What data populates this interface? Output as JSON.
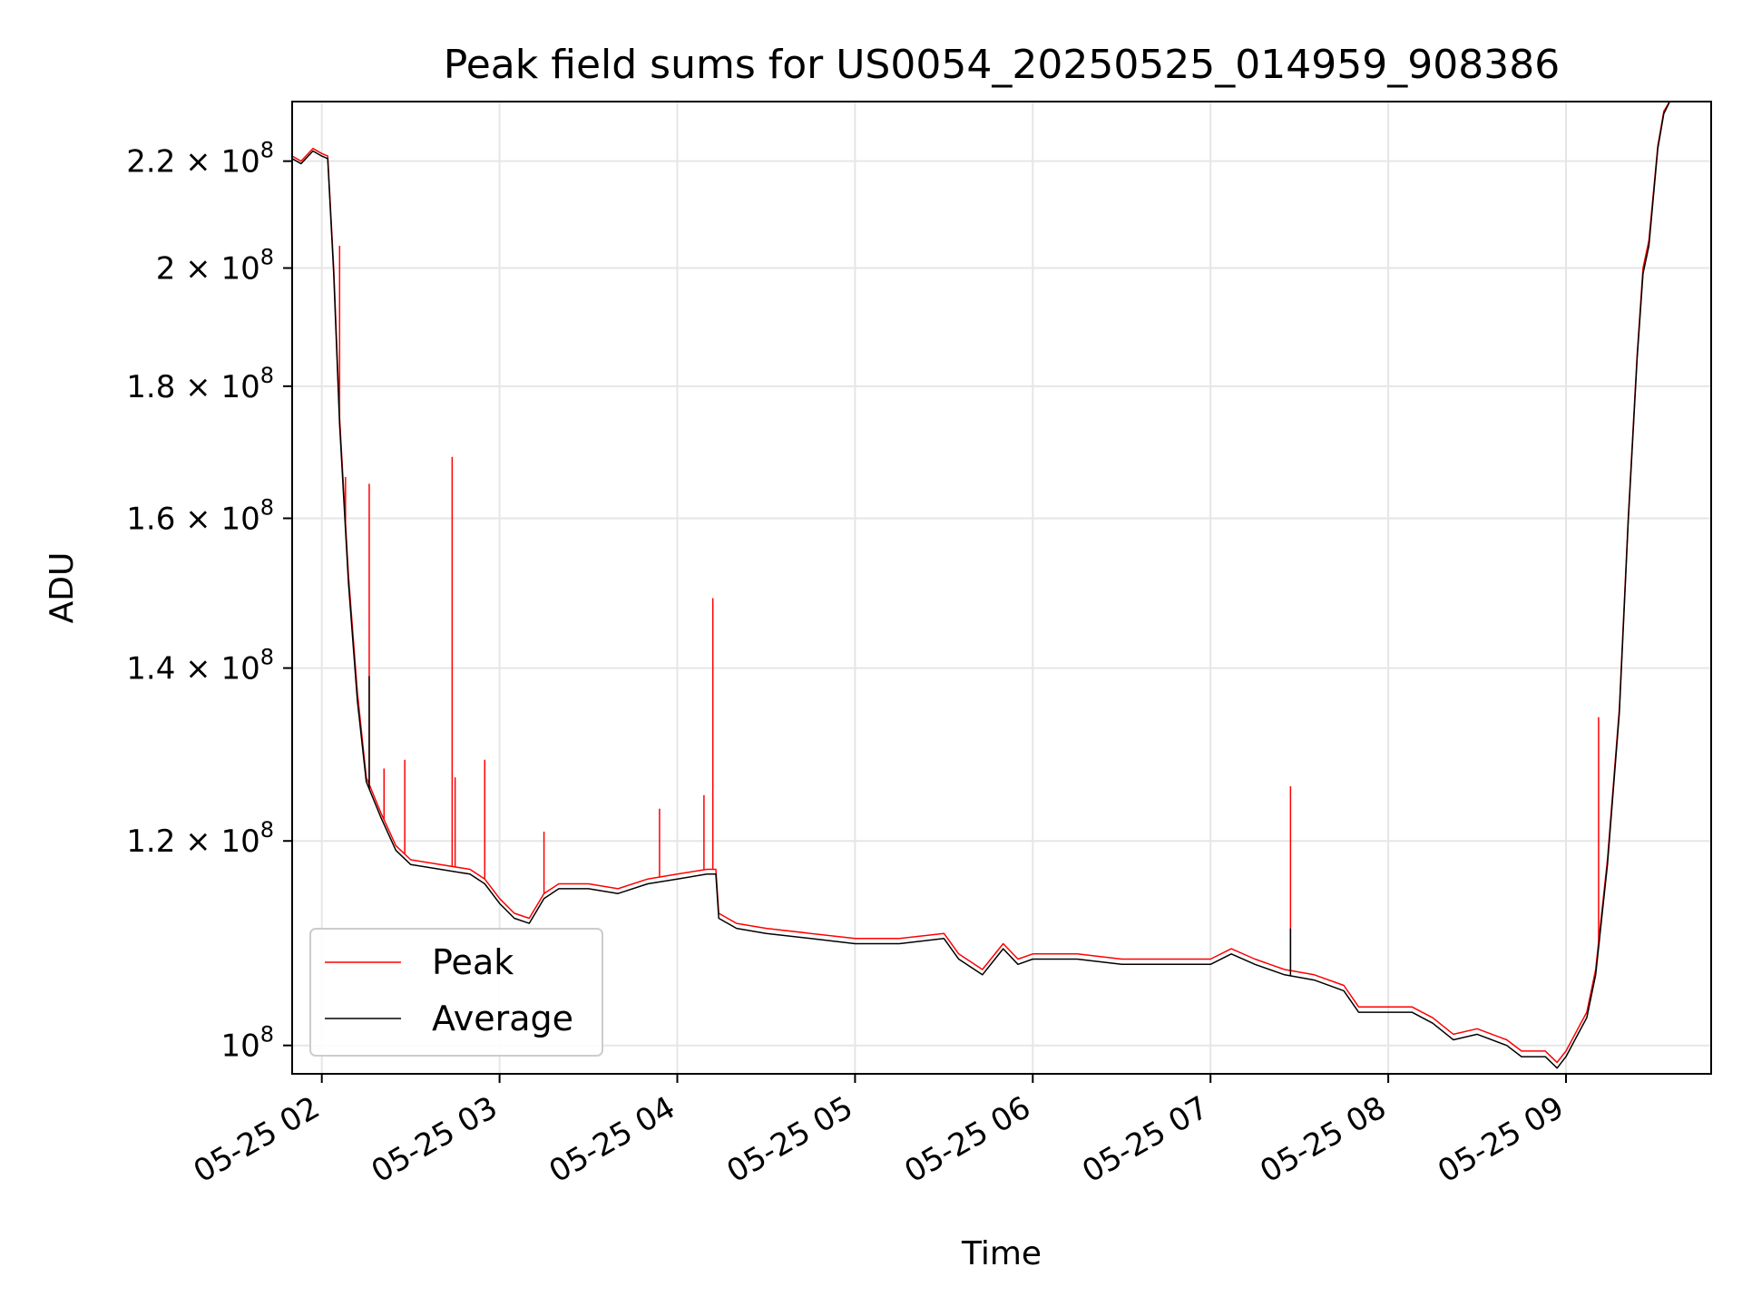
{
  "chart_data": {
    "type": "line",
    "title": "Peak field sums for US0054_20250525_014959_908386",
    "xlabel": "Time",
    "ylabel": "ADU",
    "xscale": "time",
    "yscale": "log",
    "xlim": [
      "2025-05-25 01:49:59",
      "2025-05-25 09:49:00"
    ],
    "ylim": [
      97500000,
      232000000
    ],
    "grid": true,
    "legend_position": "lower-left",
    "x_ticks": [
      {
        "time": "2025-05-25 02:00",
        "label": "05-25 02"
      },
      {
        "time": "2025-05-25 03:00",
        "label": "05-25 03"
      },
      {
        "time": "2025-05-25 04:00",
        "label": "05-25 04"
      },
      {
        "time": "2025-05-25 05:00",
        "label": "05-25 05"
      },
      {
        "time": "2025-05-25 06:00",
        "label": "05-25 06"
      },
      {
        "time": "2025-05-25 07:00",
        "label": "05-25 07"
      },
      {
        "time": "2025-05-25 08:00",
        "label": "05-25 08"
      },
      {
        "time": "2025-05-25 09:00",
        "label": "05-25 09"
      }
    ],
    "y_ticks": [
      {
        "value": 100000000,
        "base": "10",
        "exp": "8"
      },
      {
        "value": 120000000,
        "base": "1.2 × 10",
        "exp": "8"
      },
      {
        "value": 140000000,
        "base": "1.4 × 10",
        "exp": "8"
      },
      {
        "value": 160000000,
        "base": "1.6 × 10",
        "exp": "8"
      },
      {
        "value": 180000000,
        "base": "1.8 × 10",
        "exp": "8"
      },
      {
        "value": 200000000,
        "base": "2 × 10",
        "exp": "8"
      },
      {
        "value": 220000000,
        "base": "2.2 × 10",
        "exp": "8"
      }
    ],
    "series": [
      {
        "name": "Peak",
        "color": "#ff0000",
        "points": [
          [
            "2025-05-25 01:50",
            221000000
          ],
          [
            "2025-05-25 01:53",
            220000000
          ],
          [
            "2025-05-25 01:57",
            222500000
          ],
          [
            "2025-05-25 02:00",
            221500000
          ],
          [
            "2025-05-25 02:02",
            221000000
          ],
          [
            "2025-05-25 02:04",
            200000000
          ],
          [
            "2025-05-25 02:06",
            175000000
          ],
          [
            "2025-05-25 02:09",
            152000000
          ],
          [
            "2025-05-25 02:12",
            137000000
          ],
          [
            "2025-05-25 02:15",
            127000000
          ],
          [
            "2025-05-25 02:20",
            123000000
          ],
          [
            "2025-05-25 02:25",
            119500000
          ],
          [
            "2025-05-25 02:30",
            118000000
          ],
          [
            "2025-05-25 02:40",
            117500000
          ],
          [
            "2025-05-25 02:50",
            117000000
          ],
          [
            "2025-05-25 02:55",
            116000000
          ],
          [
            "2025-05-25 03:00",
            114000000
          ],
          [
            "2025-05-25 03:05",
            112500000
          ],
          [
            "2025-05-25 03:10",
            112000000
          ],
          [
            "2025-05-25 03:15",
            114500000
          ],
          [
            "2025-05-25 03:20",
            115500000
          ],
          [
            "2025-05-25 03:30",
            115500000
          ],
          [
            "2025-05-25 03:40",
            115000000
          ],
          [
            "2025-05-25 03:50",
            116000000
          ],
          [
            "2025-05-25 04:00",
            116500000
          ],
          [
            "2025-05-25 04:10",
            117000000
          ],
          [
            "2025-05-25 04:13",
            117000000
          ],
          [
            "2025-05-25 04:14",
            112500000
          ],
          [
            "2025-05-25 04:20",
            111500000
          ],
          [
            "2025-05-25 04:30",
            111000000
          ],
          [
            "2025-05-25 04:45",
            110500000
          ],
          [
            "2025-05-25 05:00",
            110000000
          ],
          [
            "2025-05-25 05:15",
            110000000
          ],
          [
            "2025-05-25 05:30",
            110500000
          ],
          [
            "2025-05-25 05:35",
            108500000
          ],
          [
            "2025-05-25 05:43",
            107000000
          ],
          [
            "2025-05-25 05:50",
            109500000
          ],
          [
            "2025-05-25 05:55",
            108000000
          ],
          [
            "2025-05-25 06:00",
            108500000
          ],
          [
            "2025-05-25 06:15",
            108500000
          ],
          [
            "2025-05-25 06:30",
            108000000
          ],
          [
            "2025-05-25 06:45",
            108000000
          ],
          [
            "2025-05-25 07:00",
            108000000
          ],
          [
            "2025-05-25 07:07",
            109000000
          ],
          [
            "2025-05-25 07:15",
            108000000
          ],
          [
            "2025-05-25 07:25",
            107000000
          ],
          [
            "2025-05-25 07:35",
            106500000
          ],
          [
            "2025-05-25 07:45",
            105500000
          ],
          [
            "2025-05-25 07:50",
            103500000
          ],
          [
            "2025-05-25 08:00",
            103500000
          ],
          [
            "2025-05-25 08:08",
            103500000
          ],
          [
            "2025-05-25 08:15",
            102500000
          ],
          [
            "2025-05-25 08:22",
            101000000
          ],
          [
            "2025-05-25 08:30",
            101500000
          ],
          [
            "2025-05-25 08:40",
            100500000
          ],
          [
            "2025-05-25 08:45",
            99500000
          ],
          [
            "2025-05-25 08:53",
            99500000
          ],
          [
            "2025-05-25 08:57",
            98500000
          ],
          [
            "2025-05-25 09:00",
            99500000
          ],
          [
            "2025-05-25 09:04",
            101500000
          ],
          [
            "2025-05-25 09:07",
            103000000
          ],
          [
            "2025-05-25 09:10",
            107000000
          ],
          [
            "2025-05-25 09:14",
            118000000
          ],
          [
            "2025-05-25 09:18",
            135000000
          ],
          [
            "2025-05-25 09:21",
            160000000
          ],
          [
            "2025-05-25 09:24",
            185000000
          ],
          [
            "2025-05-25 09:26",
            200000000
          ],
          [
            "2025-05-25 09:28",
            205000000
          ],
          [
            "2025-05-25 09:31",
            223000000
          ],
          [
            "2025-05-25 09:33",
            230000000
          ],
          [
            "2025-05-25 09:35",
            232000000
          ]
        ],
        "spikes": [
          [
            "2025-05-25 02:06",
            204000000
          ],
          [
            "2025-05-25 02:08",
            166000000
          ],
          [
            "2025-05-25 02:16",
            165000000
          ],
          [
            "2025-05-25 02:21",
            128000000
          ],
          [
            "2025-05-25 02:28",
            129000000
          ],
          [
            "2025-05-25 02:44",
            169000000
          ],
          [
            "2025-05-25 02:45",
            127000000
          ],
          [
            "2025-05-25 02:55",
            129000000
          ],
          [
            "2025-05-25 03:15",
            121000000
          ],
          [
            "2025-05-25 03:54",
            123500000
          ],
          [
            "2025-05-25 04:09",
            125000000
          ],
          [
            "2025-05-25 04:12",
            149000000
          ],
          [
            "2025-05-25 07:27",
            126000000
          ],
          [
            "2025-05-25 09:11",
            134000000
          ]
        ]
      },
      {
        "name": "Average",
        "color": "#000000",
        "points": [
          [
            "2025-05-25 01:50",
            220500000
          ],
          [
            "2025-05-25 01:53",
            219500000
          ],
          [
            "2025-05-25 01:57",
            222000000
          ],
          [
            "2025-05-25 02:00",
            221000000
          ],
          [
            "2025-05-25 02:02",
            220500000
          ],
          [
            "2025-05-25 02:04",
            199000000
          ],
          [
            "2025-05-25 02:06",
            174000000
          ],
          [
            "2025-05-25 02:09",
            151000000
          ],
          [
            "2025-05-25 02:12",
            136000000
          ],
          [
            "2025-05-25 02:15",
            126500000
          ],
          [
            "2025-05-25 02:20",
            122500000
          ],
          [
            "2025-05-25 02:25",
            119000000
          ],
          [
            "2025-05-25 02:30",
            117500000
          ],
          [
            "2025-05-25 02:40",
            117000000
          ],
          [
            "2025-05-25 02:50",
            116500000
          ],
          [
            "2025-05-25 02:55",
            115500000
          ],
          [
            "2025-05-25 03:00",
            113500000
          ],
          [
            "2025-05-25 03:05",
            112000000
          ],
          [
            "2025-05-25 03:10",
            111500000
          ],
          [
            "2025-05-25 03:15",
            114000000
          ],
          [
            "2025-05-25 03:20",
            115000000
          ],
          [
            "2025-05-25 03:30",
            115000000
          ],
          [
            "2025-05-25 03:40",
            114500000
          ],
          [
            "2025-05-25 03:50",
            115500000
          ],
          [
            "2025-05-25 04:00",
            116000000
          ],
          [
            "2025-05-25 04:10",
            116500000
          ],
          [
            "2025-05-25 04:13",
            116500000
          ],
          [
            "2025-05-25 04:14",
            112000000
          ],
          [
            "2025-05-25 04:20",
            111000000
          ],
          [
            "2025-05-25 04:30",
            110500000
          ],
          [
            "2025-05-25 04:45",
            110000000
          ],
          [
            "2025-05-25 05:00",
            109500000
          ],
          [
            "2025-05-25 05:15",
            109500000
          ],
          [
            "2025-05-25 05:30",
            110000000
          ],
          [
            "2025-05-25 05:35",
            108000000
          ],
          [
            "2025-05-25 05:43",
            106500000
          ],
          [
            "2025-05-25 05:50",
            109000000
          ],
          [
            "2025-05-25 05:55",
            107500000
          ],
          [
            "2025-05-25 06:00",
            108000000
          ],
          [
            "2025-05-25 06:15",
            108000000
          ],
          [
            "2025-05-25 06:30",
            107500000
          ],
          [
            "2025-05-25 06:45",
            107500000
          ],
          [
            "2025-05-25 07:00",
            107500000
          ],
          [
            "2025-05-25 07:07",
            108500000
          ],
          [
            "2025-05-25 07:15",
            107500000
          ],
          [
            "2025-05-25 07:25",
            106500000
          ],
          [
            "2025-05-25 07:35",
            106000000
          ],
          [
            "2025-05-25 07:45",
            105000000
          ],
          [
            "2025-05-25 07:50",
            103000000
          ],
          [
            "2025-05-25 08:00",
            103000000
          ],
          [
            "2025-05-25 08:08",
            103000000
          ],
          [
            "2025-05-25 08:15",
            102000000
          ],
          [
            "2025-05-25 08:22",
            100500000
          ],
          [
            "2025-05-25 08:30",
            101000000
          ],
          [
            "2025-05-25 08:40",
            100000000
          ],
          [
            "2025-05-25 08:45",
            99000000
          ],
          [
            "2025-05-25 08:53",
            99000000
          ],
          [
            "2025-05-25 08:57",
            98000000
          ],
          [
            "2025-05-25 09:00",
            99000000
          ],
          [
            "2025-05-25 09:04",
            101000000
          ],
          [
            "2025-05-25 09:07",
            102500000
          ],
          [
            "2025-05-25 09:10",
            106500000
          ],
          [
            "2025-05-25 09:14",
            117500000
          ],
          [
            "2025-05-25 09:18",
            134500000
          ],
          [
            "2025-05-25 09:21",
            159500000
          ],
          [
            "2025-05-25 09:24",
            184500000
          ],
          [
            "2025-05-25 09:26",
            199000000
          ],
          [
            "2025-05-25 09:28",
            204000000
          ],
          [
            "2025-05-25 09:31",
            222500000
          ],
          [
            "2025-05-25 09:33",
            229500000
          ],
          [
            "2025-05-25 09:35",
            232000000
          ]
        ],
        "spikes": [
          [
            "2025-05-25 02:16",
            139000000
          ],
          [
            "2025-05-25 07:27",
            111000000
          ]
        ]
      }
    ]
  }
}
